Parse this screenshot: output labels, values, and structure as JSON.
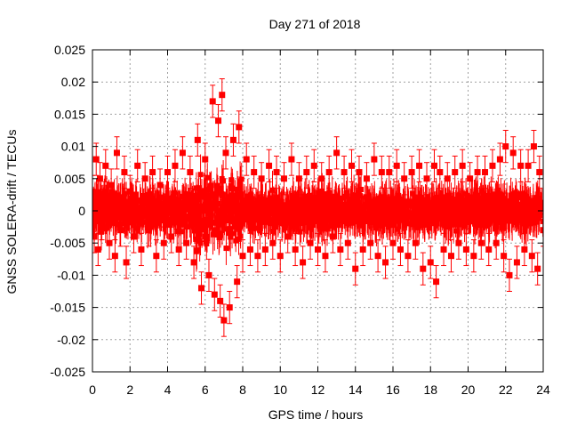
{
  "chart_data": {
    "type": "scatter",
    "title": "Day 271 of 2018",
    "xlabel": "GPS time / hours",
    "ylabel": "GNSS SOLERA-drift / TECUs",
    "xlim": [
      0,
      24
    ],
    "ylim": [
      -0.025,
      0.025
    ],
    "xticks": [
      "0",
      "2",
      "4",
      "6",
      "8",
      "10",
      "12",
      "14",
      "16",
      "18",
      "20",
      "22",
      "24"
    ],
    "yticks": [
      "-0.025",
      "-0.02",
      "-0.015",
      "-0.01",
      "-0.005",
      "0",
      "0.005",
      "0.01",
      "0.015",
      "0.02",
      "0.025"
    ],
    "grid": true,
    "series": [
      {
        "color": "#ff0000",
        "marker": "square",
        "error_bars": true,
        "typical_error": 0.0025,
        "points": [
          [
            0.0,
            0.003
          ],
          [
            0.1,
            -0.004
          ],
          [
            0.2,
            0.008
          ],
          [
            0.3,
            -0.006
          ],
          [
            0.4,
            0.005
          ],
          [
            0.5,
            -0.002
          ],
          [
            0.7,
            0.007
          ],
          [
            0.9,
            -0.005
          ],
          [
            1.0,
            0.004
          ],
          [
            1.2,
            -0.007
          ],
          [
            1.3,
            0.009
          ],
          [
            1.5,
            -0.003
          ],
          [
            1.7,
            0.006
          ],
          [
            1.8,
            -0.008
          ],
          [
            2.0,
            0.003
          ],
          [
            2.2,
            -0.004
          ],
          [
            2.4,
            0.007
          ],
          [
            2.6,
            -0.006
          ],
          [
            2.8,
            0.005
          ],
          [
            3.0,
            -0.003
          ],
          [
            3.2,
            0.006
          ],
          [
            3.4,
            -0.007
          ],
          [
            3.6,
            0.004
          ],
          [
            3.8,
            -0.005
          ],
          [
            4.0,
            0.006
          ],
          [
            4.2,
            -0.004
          ],
          [
            4.4,
            0.007
          ],
          [
            4.6,
            -0.006
          ],
          [
            4.8,
            0.009
          ],
          [
            5.0,
            -0.005
          ],
          [
            5.2,
            0.006
          ],
          [
            5.4,
            -0.008
          ],
          [
            5.6,
            0.011
          ],
          [
            5.8,
            -0.012
          ],
          [
            6.0,
            0.008
          ],
          [
            6.2,
            -0.01
          ],
          [
            6.4,
            0.017
          ],
          [
            6.5,
            -0.013
          ],
          [
            6.7,
            0.014
          ],
          [
            6.8,
            -0.014
          ],
          [
            6.9,
            0.018
          ],
          [
            7.0,
            -0.017
          ],
          [
            7.1,
            0.009
          ],
          [
            7.3,
            -0.015
          ],
          [
            7.5,
            0.011
          ],
          [
            7.7,
            -0.011
          ],
          [
            7.8,
            0.013
          ],
          [
            8.0,
            -0.007
          ],
          [
            8.2,
            0.008
          ],
          [
            8.4,
            -0.006
          ],
          [
            8.6,
            0.006
          ],
          [
            8.8,
            -0.007
          ],
          [
            9.0,
            0.005
          ],
          [
            9.2,
            -0.006
          ],
          [
            9.4,
            0.007
          ],
          [
            9.6,
            -0.005
          ],
          [
            9.8,
            0.006
          ],
          [
            10.0,
            -0.007
          ],
          [
            10.2,
            0.005
          ],
          [
            10.4,
            -0.004
          ],
          [
            10.6,
            0.008
          ],
          [
            10.8,
            -0.006
          ],
          [
            11.0,
            0.005
          ],
          [
            11.2,
            -0.008
          ],
          [
            11.4,
            0.006
          ],
          [
            11.6,
            -0.005
          ],
          [
            11.8,
            0.007
          ],
          [
            12.0,
            -0.006
          ],
          [
            12.2,
            0.005
          ],
          [
            12.4,
            -0.007
          ],
          [
            12.6,
            0.006
          ],
          [
            12.8,
            -0.004
          ],
          [
            13.0,
            0.009
          ],
          [
            13.2,
            -0.006
          ],
          [
            13.4,
            0.006
          ],
          [
            13.6,
            -0.005
          ],
          [
            13.8,
            0.007
          ],
          [
            14.0,
            -0.009
          ],
          [
            14.2,
            0.006
          ],
          [
            14.4,
            -0.006
          ],
          [
            14.6,
            0.005
          ],
          [
            14.8,
            -0.005
          ],
          [
            15.0,
            0.008
          ],
          [
            15.2,
            -0.007
          ],
          [
            15.4,
            0.006
          ],
          [
            15.6,
            -0.008
          ],
          [
            15.8,
            0.006
          ],
          [
            16.0,
            -0.005
          ],
          [
            16.2,
            0.007
          ],
          [
            16.4,
            -0.006
          ],
          [
            16.6,
            0.005
          ],
          [
            16.8,
            -0.007
          ],
          [
            17.0,
            0.006
          ],
          [
            17.2,
            -0.005
          ],
          [
            17.4,
            0.007
          ],
          [
            17.6,
            -0.009
          ],
          [
            17.8,
            0.005
          ],
          [
            18.0,
            -0.008
          ],
          [
            18.2,
            0.007
          ],
          [
            18.3,
            -0.011
          ],
          [
            18.5,
            0.006
          ],
          [
            18.7,
            -0.006
          ],
          [
            18.9,
            0.005
          ],
          [
            19.1,
            -0.007
          ],
          [
            19.3,
            0.006
          ],
          [
            19.5,
            -0.005
          ],
          [
            19.7,
            0.007
          ],
          [
            19.9,
            -0.006
          ],
          [
            20.1,
            0.005
          ],
          [
            20.3,
            -0.007
          ],
          [
            20.5,
            0.006
          ],
          [
            20.7,
            -0.005
          ],
          [
            20.9,
            0.006
          ],
          [
            21.1,
            -0.006
          ],
          [
            21.3,
            0.007
          ],
          [
            21.5,
            -0.005
          ],
          [
            21.7,
            0.008
          ],
          [
            21.9,
            -0.007
          ],
          [
            22.0,
            0.01
          ],
          [
            22.2,
            -0.01
          ],
          [
            22.4,
            0.009
          ],
          [
            22.6,
            -0.008
          ],
          [
            22.8,
            0.007
          ],
          [
            23.0,
            -0.006
          ],
          [
            23.2,
            0.007
          ],
          [
            23.4,
            -0.007
          ],
          [
            23.5,
            0.01
          ],
          [
            23.7,
            -0.009
          ],
          [
            23.8,
            0.006
          ],
          [
            24.0,
            -0.003
          ]
        ]
      }
    ]
  }
}
